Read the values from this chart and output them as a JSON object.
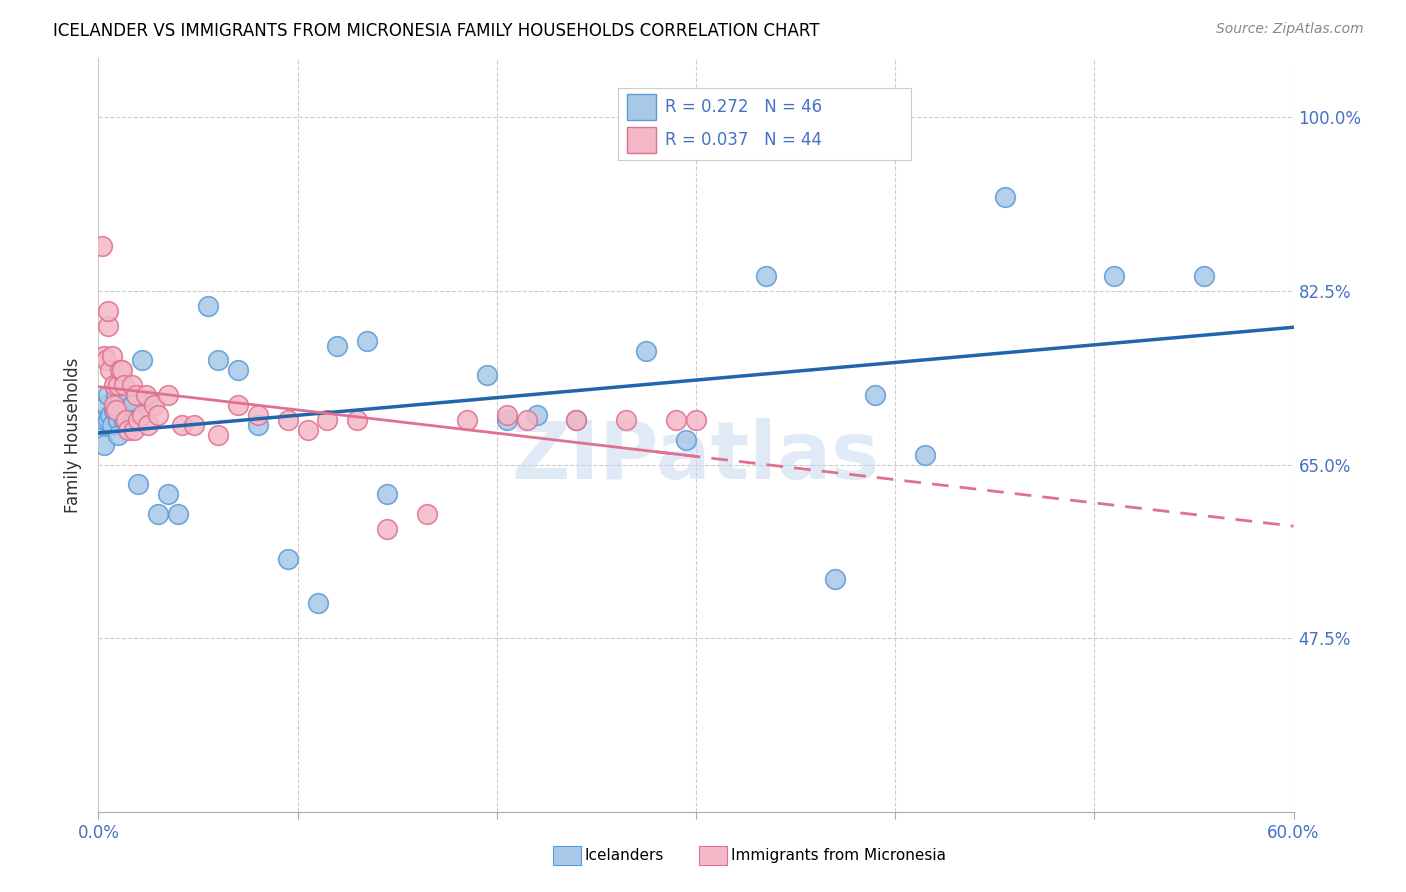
{
  "title": "ICELANDER VS IMMIGRANTS FROM MICRONESIA FAMILY HOUSEHOLDS CORRELATION CHART",
  "source": "Source: ZipAtlas.com",
  "ylabel": "Family Households",
  "legend_blue_r": "R = 0.272",
  "legend_blue_n": "N = 46",
  "legend_pink_r": "R = 0.037",
  "legend_pink_n": "N = 44",
  "legend_label_blue": "Icelanders",
  "legend_label_pink": "Immigrants from Micronesia",
  "blue_color": "#a8c8e8",
  "blue_edge_color": "#5b9bd5",
  "pink_color": "#f4b8c8",
  "pink_edge_color": "#e07090",
  "blue_line_color": "#2166ac",
  "pink_line_color": "#e07090",
  "watermark": "ZIPatlas",
  "xlim": [
    0.0,
    0.6
  ],
  "ylim": [
    0.3,
    1.06
  ],
  "ytick_vals": [
    1.0,
    0.825,
    0.65,
    0.475
  ],
  "ytick_labels": [
    "100.0%",
    "82.5%",
    "65.0%",
    "47.5%"
  ],
  "blue_x": [
    0.002,
    0.003,
    0.003,
    0.004,
    0.005,
    0.005,
    0.006,
    0.007,
    0.008,
    0.009,
    0.01,
    0.01,
    0.011,
    0.012,
    0.013,
    0.015,
    0.017,
    0.018,
    0.02,
    0.022,
    0.025,
    0.03,
    0.035,
    0.04,
    0.055,
    0.06,
    0.07,
    0.08,
    0.095,
    0.11,
    0.12,
    0.135,
    0.145,
    0.195,
    0.205,
    0.22,
    0.24,
    0.275,
    0.295,
    0.335,
    0.37,
    0.39,
    0.415,
    0.455,
    0.51,
    0.555
  ],
  "blue_y": [
    0.69,
    0.695,
    0.67,
    0.71,
    0.72,
    0.695,
    0.7,
    0.69,
    0.705,
    0.72,
    0.695,
    0.68,
    0.715,
    0.7,
    0.695,
    0.715,
    0.71,
    0.695,
    0.63,
    0.755,
    0.715,
    0.6,
    0.62,
    0.6,
    0.81,
    0.755,
    0.745,
    0.69,
    0.555,
    0.51,
    0.77,
    0.775,
    0.62,
    0.74,
    0.695,
    0.7,
    0.695,
    0.765,
    0.675,
    0.84,
    0.535,
    0.72,
    0.66,
    0.92,
    0.84,
    0.84
  ],
  "pink_x": [
    0.002,
    0.003,
    0.004,
    0.005,
    0.005,
    0.006,
    0.007,
    0.008,
    0.008,
    0.009,
    0.01,
    0.011,
    0.012,
    0.013,
    0.014,
    0.015,
    0.017,
    0.018,
    0.019,
    0.02,
    0.022,
    0.024,
    0.025,
    0.028,
    0.03,
    0.035,
    0.042,
    0.048,
    0.06,
    0.07,
    0.08,
    0.095,
    0.105,
    0.115,
    0.13,
    0.145,
    0.165,
    0.185,
    0.205,
    0.215,
    0.24,
    0.265,
    0.29,
    0.3
  ],
  "pink_y": [
    0.87,
    0.76,
    0.755,
    0.79,
    0.805,
    0.745,
    0.76,
    0.71,
    0.73,
    0.705,
    0.73,
    0.745,
    0.745,
    0.73,
    0.695,
    0.685,
    0.73,
    0.685,
    0.72,
    0.695,
    0.7,
    0.72,
    0.69,
    0.71,
    0.7,
    0.72,
    0.69,
    0.69,
    0.68,
    0.71,
    0.7,
    0.695,
    0.685,
    0.695,
    0.695,
    0.585,
    0.6,
    0.695,
    0.7,
    0.695,
    0.695,
    0.695,
    0.695,
    0.695
  ]
}
